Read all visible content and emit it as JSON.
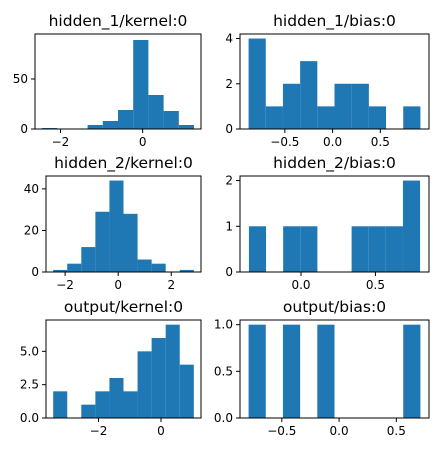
{
  "style": {
    "bar_color": "#1f77b4",
    "axis_color": "#000000",
    "background": "#ffffff"
  },
  "chart_data": [
    {
      "type": "bar",
      "subtype": "histogram",
      "title": "hidden_1/kernel:0",
      "bin_edges": [
        -2.45,
        -2.08,
        -1.71,
        -1.34,
        -0.97,
        -0.6,
        -0.23,
        0.14,
        0.51,
        0.88,
        1.25
      ],
      "values": [
        1,
        0,
        0,
        4,
        8,
        19,
        89,
        34,
        18,
        4
      ],
      "xlim": [
        -2.62,
        1.42
      ],
      "ylim": [
        0,
        95
      ],
      "xticks": [
        -2,
        0
      ],
      "xtick_labels": [
        "−2",
        "0"
      ],
      "yticks": [
        0,
        50
      ],
      "ytick_labels": [
        "0",
        "50"
      ],
      "grid": false
    },
    {
      "type": "bar",
      "subtype": "histogram",
      "title": "hidden_1/bias:0",
      "bin_edges": [
        -0.88,
        -0.7,
        -0.52,
        -0.34,
        -0.16,
        0.02,
        0.2,
        0.38,
        0.56,
        0.74,
        0.92
      ],
      "values": [
        4,
        1,
        2,
        3,
        1,
        2,
        2,
        1,
        0,
        1
      ],
      "xlim": [
        -0.97,
        1.01
      ],
      "ylim": [
        0,
        4.2
      ],
      "xticks": [
        -0.5,
        0.0,
        0.5
      ],
      "xtick_labels": [
        "−0.5",
        "0.0",
        "0.5"
      ],
      "yticks": [
        0,
        2,
        4
      ],
      "ytick_labels": [
        "0",
        "2",
        "4"
      ],
      "grid": false
    },
    {
      "type": "bar",
      "subtype": "histogram",
      "title": "hidden_2/kernel:0",
      "bin_edges": [
        -2.45,
        -1.92,
        -1.39,
        -0.86,
        -0.33,
        0.2,
        0.73,
        1.26,
        1.79,
        2.32,
        2.85
      ],
      "values": [
        1,
        4,
        12,
        29,
        44,
        28,
        6,
        4,
        0,
        1
      ],
      "xlim": [
        -2.72,
        3.12
      ],
      "ylim": [
        0,
        46.2
      ],
      "xticks": [
        -2,
        0,
        2
      ],
      "xtick_labels": [
        "−2",
        "0",
        "2"
      ],
      "yticks": [
        0,
        20,
        40
      ],
      "ytick_labels": [
        "0",
        "20",
        "40"
      ],
      "grid": false
    },
    {
      "type": "bar",
      "subtype": "histogram",
      "title": "hidden_2/bias:0",
      "bin_edges": [
        -0.35,
        -0.235,
        -0.12,
        -0.005,
        0.11,
        0.225,
        0.34,
        0.455,
        0.57,
        0.685,
        0.8
      ],
      "values": [
        1,
        0,
        1,
        1,
        0,
        0,
        1,
        1,
        1,
        2
      ],
      "xlim": [
        -0.41,
        0.86
      ],
      "ylim": [
        0,
        2.1
      ],
      "xticks": [
        0.0,
        0.5
      ],
      "xtick_labels": [
        "0.0",
        "0.5"
      ],
      "yticks": [
        0,
        1,
        2
      ],
      "ytick_labels": [
        "0",
        "1",
        "2"
      ],
      "grid": false
    },
    {
      "type": "bar",
      "subtype": "histogram",
      "title": "output/kernel:0",
      "bin_edges": [
        -3.45,
        -3.0,
        -2.55,
        -2.1,
        -1.65,
        -1.2,
        -0.75,
        -0.3,
        0.15,
        0.6,
        1.05
      ],
      "values": [
        2,
        0,
        1,
        2,
        3,
        2,
        5,
        6,
        7,
        4
      ],
      "xlim": [
        -3.68,
        1.28
      ],
      "ylim": [
        0,
        7.35
      ],
      "xticks": [
        -2,
        0
      ],
      "xtick_labels": [
        "−2",
        "0"
      ],
      "yticks": [
        0,
        2.5,
        5
      ],
      "ytick_labels": [
        "0.0",
        "2.5",
        "5.0"
      ],
      "grid": false
    },
    {
      "type": "bar",
      "subtype": "histogram",
      "title": "output/bias:0",
      "bin_edges": [
        -0.79,
        -0.64,
        -0.49,
        -0.34,
        -0.19,
        -0.04,
        0.11,
        0.26,
        0.41,
        0.56,
        0.71
      ],
      "values": [
        1,
        0,
        1,
        0,
        1,
        0,
        0,
        0,
        0,
        1
      ],
      "xlim": [
        -0.865,
        0.785
      ],
      "ylim": [
        0,
        1.05
      ],
      "xticks": [
        -0.5,
        0.0,
        0.5
      ],
      "xtick_labels": [
        "−0.5",
        "0.0",
        "0.5"
      ],
      "yticks": [
        0,
        0.5,
        1
      ],
      "ytick_labels": [
        "0.0",
        "0.5",
        "1.0"
      ],
      "grid": false
    }
  ]
}
